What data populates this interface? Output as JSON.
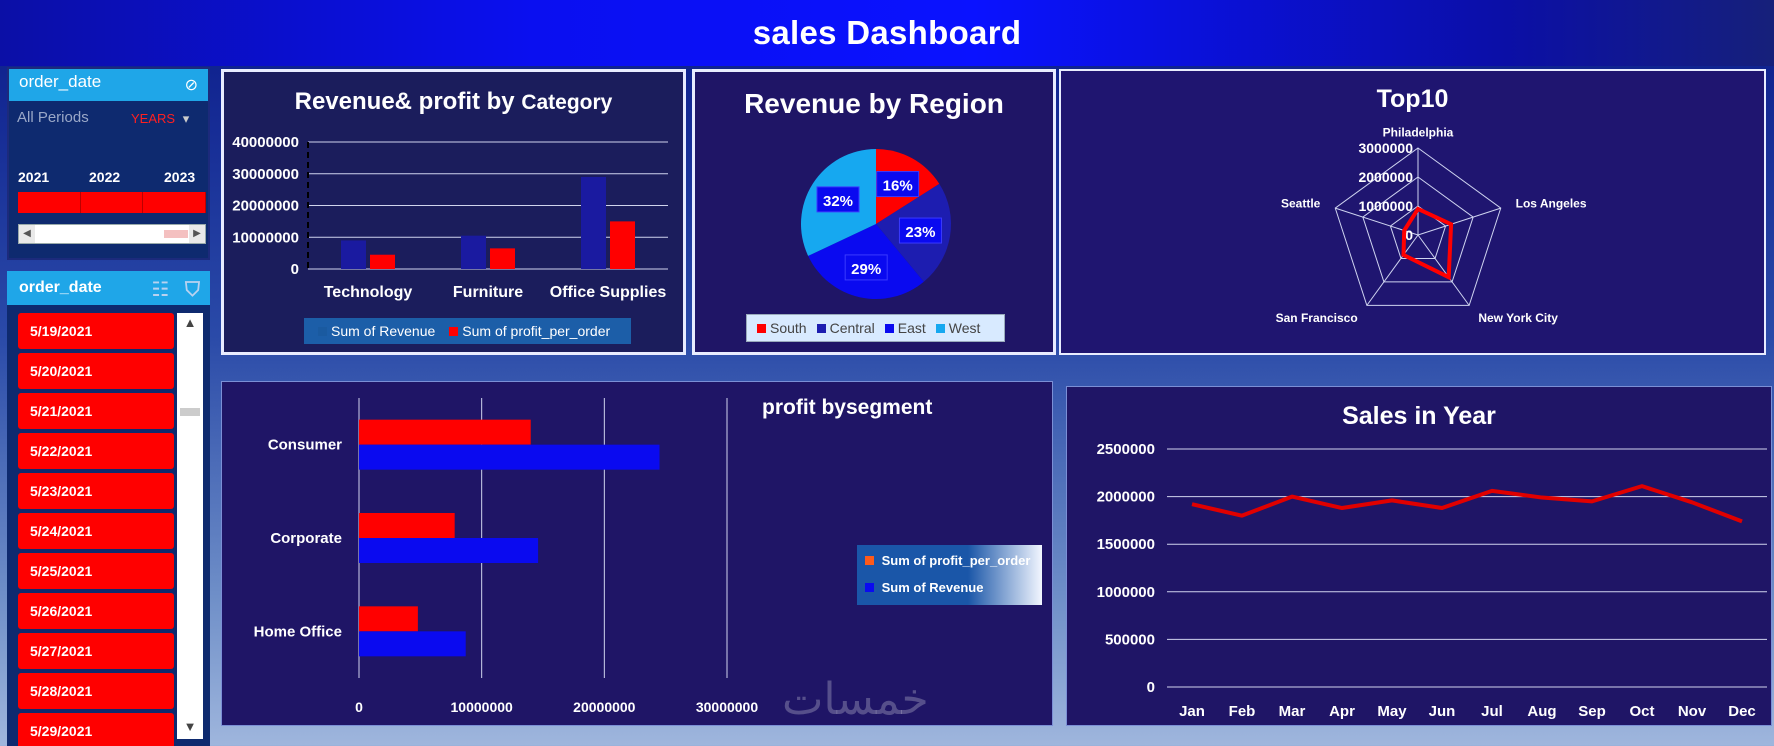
{
  "title": "sales Dashboard",
  "colors": {
    "red": "#ff0000",
    "blue": "#0000ff",
    "navy": "#1a1aa0",
    "light_blue": "#16a8f0",
    "bg": "#1f1566"
  },
  "timeline_slicer": {
    "header": "order_date",
    "period_label": "All Periods",
    "level_label": "YEARS",
    "years": [
      "2021",
      "2022",
      "2023"
    ],
    "icon": "filter-clear-icon"
  },
  "date_slicer": {
    "header": "order_date",
    "items": [
      "5/19/2021",
      "5/20/2021",
      "5/21/2021",
      "5/22/2021",
      "5/23/2021",
      "5/24/2021",
      "5/25/2021",
      "5/26/2021",
      "5/27/2021",
      "5/28/2021",
      "5/29/2021"
    ]
  },
  "chart_data": [
    {
      "type": "bar",
      "title_main": "Revenue& profit by",
      "title_suffix": "Category",
      "categories": [
        "Technology",
        "Furniture",
        "Office Supplies"
      ],
      "series": [
        {
          "name": "Sum of Revenue",
          "values": [
            9000000,
            10500000,
            29000000
          ],
          "color": "#1a1aa0"
        },
        {
          "name": "Sum of profit_per_order",
          "values": [
            4500000,
            6500000,
            15000000
          ],
          "color": "#ff0000"
        }
      ],
      "yticks": [
        0,
        10000000,
        20000000,
        30000000,
        40000000
      ],
      "ylim": [
        0,
        40000000
      ],
      "legend": "bottom"
    },
    {
      "type": "pie",
      "title": "Revenue by Region",
      "slices": [
        {
          "name": "South",
          "value": 16,
          "label": "16%",
          "color": "#ff0000"
        },
        {
          "name": "Central",
          "value": 23,
          "label": "23%",
          "color": "#1d1db0"
        },
        {
          "name": "East",
          "value": 29,
          "label": "29%",
          "color": "#0a0af0"
        },
        {
          "name": "West",
          "value": 32,
          "label": "32%",
          "color": "#16a8f0"
        }
      ],
      "legend": "bottom"
    },
    {
      "type": "radar",
      "title": "Top10",
      "axes": [
        "Philadelphia",
        "Los Angeles",
        "New York City",
        "San Francisco",
        "Seattle"
      ],
      "values": [
        900000,
        1200000,
        1800000,
        850000,
        500000
      ],
      "rings": [
        0,
        1000000,
        2000000,
        3000000
      ],
      "rmax": 3000000,
      "color": "#ff0000"
    },
    {
      "type": "bar",
      "orientation": "horizontal",
      "title": "profit bysegment",
      "categories": [
        "Consumer",
        "Corporate",
        "Home Office"
      ],
      "series": [
        {
          "name": "Sum of profit_per_order",
          "values": [
            14000000,
            7800000,
            4800000
          ],
          "color": "#ff0000"
        },
        {
          "name": "Sum of Revenue",
          "values": [
            24500000,
            14600000,
            8700000
          ],
          "color": "#0a0af0"
        }
      ],
      "xticks": [
        0,
        10000000,
        20000000,
        30000000
      ],
      "xlim": [
        0,
        30000000
      ],
      "legend": "right"
    },
    {
      "type": "line",
      "title": "Sales in Year",
      "categories": [
        "Jan",
        "Feb",
        "Mar",
        "Apr",
        "May",
        "Jun",
        "Jul",
        "Aug",
        "Sep",
        "Oct",
        "Nov",
        "Dec"
      ],
      "values": [
        1920000,
        1800000,
        2000000,
        1880000,
        1960000,
        1880000,
        2060000,
        1990000,
        1950000,
        2110000,
        1940000,
        1740000
      ],
      "yticks": [
        0,
        500000,
        1000000,
        1500000,
        2000000,
        2500000
      ],
      "ylim": [
        0,
        2500000
      ],
      "color": "#e00000",
      "grid": true
    }
  ],
  "watermark": "خمسات"
}
